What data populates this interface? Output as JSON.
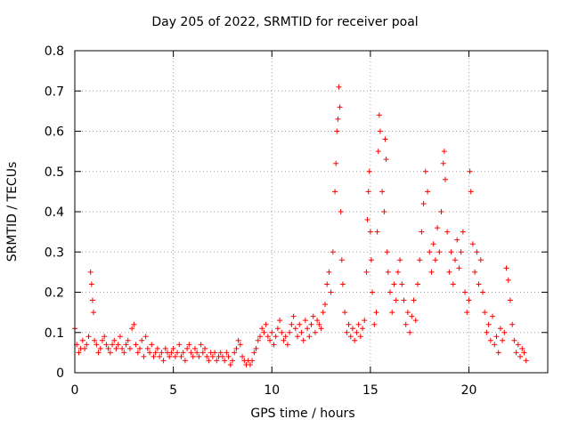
{
  "chart_data": {
    "type": "scatter",
    "title": "Day 205 of 2022, SRMTID for receiver poal",
    "xlabel": "GPS time / hours",
    "ylabel": "SRMTID / TECUs",
    "xlim": [
      0,
      24
    ],
    "ylim": [
      0,
      0.8
    ],
    "xticks": [
      0,
      5,
      10,
      15,
      20
    ],
    "xtick_labels": [
      "0",
      "5",
      "10",
      "15",
      "20"
    ],
    "yticks": [
      0,
      0.1,
      0.2,
      0.3,
      0.4,
      0.5,
      0.6,
      0.7,
      0.8
    ],
    "ytick_labels": [
      "0",
      "0.1",
      "0.2",
      "0.3",
      "0.4",
      "0.5",
      "0.6",
      "0.7",
      "0.8"
    ],
    "grid": true,
    "marker": "plus",
    "color": "#ff0000",
    "series": [
      {
        "name": "SRMTID",
        "points": [
          [
            0.0,
            0.11
          ],
          [
            0.1,
            0.07
          ],
          [
            0.2,
            0.05
          ],
          [
            0.3,
            0.06
          ],
          [
            0.4,
            0.08
          ],
          [
            0.5,
            0.06
          ],
          [
            0.6,
            0.07
          ],
          [
            0.7,
            0.09
          ],
          [
            0.8,
            0.25
          ],
          [
            0.85,
            0.22
          ],
          [
            0.9,
            0.18
          ],
          [
            0.95,
            0.15
          ],
          [
            1.0,
            0.08
          ],
          [
            1.1,
            0.07
          ],
          [
            1.2,
            0.05
          ],
          [
            1.3,
            0.06
          ],
          [
            1.4,
            0.08
          ],
          [
            1.5,
            0.09
          ],
          [
            1.6,
            0.07
          ],
          [
            1.7,
            0.06
          ],
          [
            1.8,
            0.05
          ],
          [
            1.9,
            0.07
          ],
          [
            2.0,
            0.08
          ],
          [
            2.1,
            0.06
          ],
          [
            2.2,
            0.07
          ],
          [
            2.3,
            0.09
          ],
          [
            2.4,
            0.06
          ],
          [
            2.5,
            0.05
          ],
          [
            2.6,
            0.07
          ],
          [
            2.7,
            0.08
          ],
          [
            2.8,
            0.06
          ],
          [
            2.9,
            0.11
          ],
          [
            3.0,
            0.12
          ],
          [
            3.1,
            0.07
          ],
          [
            3.2,
            0.05
          ],
          [
            3.3,
            0.06
          ],
          [
            3.4,
            0.08
          ],
          [
            3.5,
            0.04
          ],
          [
            3.6,
            0.09
          ],
          [
            3.7,
            0.06
          ],
          [
            3.8,
            0.05
          ],
          [
            3.9,
            0.07
          ],
          [
            4.0,
            0.04
          ],
          [
            4.1,
            0.05
          ],
          [
            4.2,
            0.06
          ],
          [
            4.3,
            0.04
          ],
          [
            4.4,
            0.05
          ],
          [
            4.5,
            0.03
          ],
          [
            4.6,
            0.06
          ],
          [
            4.7,
            0.05
          ],
          [
            4.8,
            0.04
          ],
          [
            4.9,
            0.05
          ],
          [
            5.0,
            0.06
          ],
          [
            5.1,
            0.04
          ],
          [
            5.2,
            0.05
          ],
          [
            5.3,
            0.07
          ],
          [
            5.4,
            0.04
          ],
          [
            5.5,
            0.05
          ],
          [
            5.6,
            0.03
          ],
          [
            5.7,
            0.06
          ],
          [
            5.8,
            0.07
          ],
          [
            5.9,
            0.05
          ],
          [
            6.0,
            0.04
          ],
          [
            6.1,
            0.06
          ],
          [
            6.2,
            0.05
          ],
          [
            6.3,
            0.04
          ],
          [
            6.4,
            0.07
          ],
          [
            6.5,
            0.05
          ],
          [
            6.6,
            0.06
          ],
          [
            6.7,
            0.04
          ],
          [
            6.8,
            0.03
          ],
          [
            6.9,
            0.05
          ],
          [
            7.0,
            0.04
          ],
          [
            7.1,
            0.05
          ],
          [
            7.2,
            0.03
          ],
          [
            7.3,
            0.04
          ],
          [
            7.4,
            0.05
          ],
          [
            7.5,
            0.04
          ],
          [
            7.6,
            0.03
          ],
          [
            7.7,
            0.05
          ],
          [
            7.8,
            0.04
          ],
          [
            7.9,
            0.02
          ],
          [
            8.0,
            0.03
          ],
          [
            8.1,
            0.05
          ],
          [
            8.2,
            0.06
          ],
          [
            8.3,
            0.08
          ],
          [
            8.4,
            0.07
          ],
          [
            8.5,
            0.04
          ],
          [
            8.6,
            0.03
          ],
          [
            8.7,
            0.02
          ],
          [
            8.8,
            0.03
          ],
          [
            8.9,
            0.02
          ],
          [
            9.0,
            0.03
          ],
          [
            9.1,
            0.05
          ],
          [
            9.2,
            0.06
          ],
          [
            9.3,
            0.08
          ],
          [
            9.4,
            0.09
          ],
          [
            9.5,
            0.11
          ],
          [
            9.6,
            0.1
          ],
          [
            9.7,
            0.12
          ],
          [
            9.8,
            0.09
          ],
          [
            9.9,
            0.08
          ],
          [
            10.0,
            0.1
          ],
          [
            10.1,
            0.07
          ],
          [
            10.2,
            0.09
          ],
          [
            10.3,
            0.11
          ],
          [
            10.4,
            0.13
          ],
          [
            10.5,
            0.1
          ],
          [
            10.6,
            0.08
          ],
          [
            10.7,
            0.09
          ],
          [
            10.8,
            0.07
          ],
          [
            10.9,
            0.1
          ],
          [
            11.0,
            0.12
          ],
          [
            11.1,
            0.14
          ],
          [
            11.2,
            0.11
          ],
          [
            11.3,
            0.09
          ],
          [
            11.4,
            0.12
          ],
          [
            11.5,
            0.1
          ],
          [
            11.6,
            0.08
          ],
          [
            11.7,
            0.13
          ],
          [
            11.8,
            0.11
          ],
          [
            11.9,
            0.09
          ],
          [
            12.0,
            0.12
          ],
          [
            12.1,
            0.14
          ],
          [
            12.2,
            0.1
          ],
          [
            12.3,
            0.13
          ],
          [
            12.4,
            0.12
          ],
          [
            12.5,
            0.11
          ],
          [
            12.6,
            0.15
          ],
          [
            12.7,
            0.17
          ],
          [
            12.8,
            0.22
          ],
          [
            12.9,
            0.25
          ],
          [
            13.0,
            0.2
          ],
          [
            13.1,
            0.3
          ],
          [
            13.2,
            0.45
          ],
          [
            13.25,
            0.52
          ],
          [
            13.3,
            0.6
          ],
          [
            13.35,
            0.63
          ],
          [
            13.4,
            0.71
          ],
          [
            13.45,
            0.66
          ],
          [
            13.5,
            0.4
          ],
          [
            13.55,
            0.28
          ],
          [
            13.6,
            0.22
          ],
          [
            13.7,
            0.15
          ],
          [
            13.8,
            0.1
          ],
          [
            13.9,
            0.12
          ],
          [
            14.0,
            0.09
          ],
          [
            14.1,
            0.11
          ],
          [
            14.2,
            0.08
          ],
          [
            14.3,
            0.1
          ],
          [
            14.4,
            0.12
          ],
          [
            14.5,
            0.09
          ],
          [
            14.6,
            0.11
          ],
          [
            14.7,
            0.13
          ],
          [
            14.8,
            0.25
          ],
          [
            14.85,
            0.38
          ],
          [
            14.9,
            0.45
          ],
          [
            14.95,
            0.5
          ],
          [
            15.0,
            0.35
          ],
          [
            15.05,
            0.28
          ],
          [
            15.1,
            0.2
          ],
          [
            15.2,
            0.12
          ],
          [
            15.3,
            0.15
          ],
          [
            15.35,
            0.35
          ],
          [
            15.4,
            0.55
          ],
          [
            15.45,
            0.64
          ],
          [
            15.5,
            0.6
          ],
          [
            15.6,
            0.45
          ],
          [
            15.7,
            0.4
          ],
          [
            15.75,
            0.58
          ],
          [
            15.8,
            0.53
          ],
          [
            15.85,
            0.3
          ],
          [
            15.9,
            0.25
          ],
          [
            16.0,
            0.2
          ],
          [
            16.1,
            0.15
          ],
          [
            16.2,
            0.22
          ],
          [
            16.3,
            0.18
          ],
          [
            16.4,
            0.25
          ],
          [
            16.5,
            0.28
          ],
          [
            16.6,
            0.22
          ],
          [
            16.7,
            0.18
          ],
          [
            16.8,
            0.12
          ],
          [
            16.9,
            0.15
          ],
          [
            17.0,
            0.1
          ],
          [
            17.1,
            0.14
          ],
          [
            17.2,
            0.18
          ],
          [
            17.3,
            0.13
          ],
          [
            17.4,
            0.22
          ],
          [
            17.5,
            0.28
          ],
          [
            17.6,
            0.35
          ],
          [
            17.7,
            0.42
          ],
          [
            17.8,
            0.5
          ],
          [
            17.9,
            0.45
          ],
          [
            18.0,
            0.3
          ],
          [
            18.1,
            0.25
          ],
          [
            18.2,
            0.32
          ],
          [
            18.3,
            0.28
          ],
          [
            18.4,
            0.36
          ],
          [
            18.5,
            0.3
          ],
          [
            18.6,
            0.4
          ],
          [
            18.7,
            0.52
          ],
          [
            18.75,
            0.55
          ],
          [
            18.8,
            0.48
          ],
          [
            18.9,
            0.35
          ],
          [
            19.0,
            0.25
          ],
          [
            19.1,
            0.3
          ],
          [
            19.2,
            0.22
          ],
          [
            19.3,
            0.28
          ],
          [
            19.4,
            0.33
          ],
          [
            19.5,
            0.26
          ],
          [
            19.6,
            0.3
          ],
          [
            19.7,
            0.35
          ],
          [
            19.8,
            0.2
          ],
          [
            19.9,
            0.15
          ],
          [
            20.0,
            0.18
          ],
          [
            20.05,
            0.5
          ],
          [
            20.1,
            0.45
          ],
          [
            20.2,
            0.32
          ],
          [
            20.3,
            0.25
          ],
          [
            20.4,
            0.3
          ],
          [
            20.5,
            0.22
          ],
          [
            20.6,
            0.28
          ],
          [
            20.7,
            0.2
          ],
          [
            20.8,
            0.15
          ],
          [
            20.9,
            0.1
          ],
          [
            21.0,
            0.12
          ],
          [
            21.1,
            0.08
          ],
          [
            21.2,
            0.14
          ],
          [
            21.3,
            0.07
          ],
          [
            21.4,
            0.09
          ],
          [
            21.5,
            0.05
          ],
          [
            21.6,
            0.11
          ],
          [
            21.7,
            0.08
          ],
          [
            21.8,
            0.1
          ],
          [
            21.9,
            0.26
          ],
          [
            22.0,
            0.23
          ],
          [
            22.1,
            0.18
          ],
          [
            22.2,
            0.12
          ],
          [
            22.3,
            0.08
          ],
          [
            22.4,
            0.05
          ],
          [
            22.5,
            0.07
          ],
          [
            22.6,
            0.04
          ],
          [
            22.7,
            0.06
          ],
          [
            22.8,
            0.05
          ],
          [
            22.9,
            0.03
          ]
        ]
      }
    ]
  }
}
